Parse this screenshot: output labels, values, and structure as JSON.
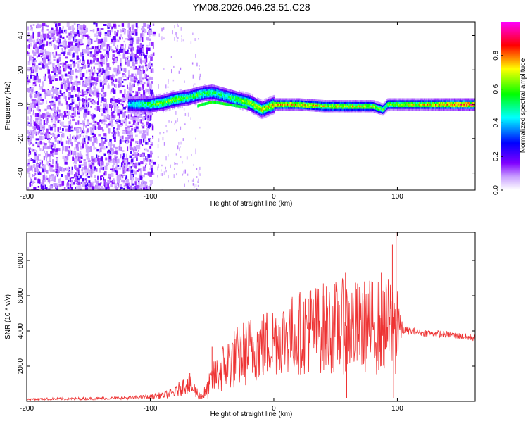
{
  "title": "YM08.2026.046.23.51.C28",
  "chart_data": [
    {
      "type": "heatmap",
      "title": "YM08.2026.046.23.51.C28",
      "xlabel": "Height of straight line (km)",
      "ylabel": "Frequency (Hz)",
      "xlim": [
        -200,
        163
      ],
      "ylim": [
        -50,
        48
      ],
      "xticks": [
        -200,
        -100,
        0,
        100
      ],
      "yticks": [
        -40,
        -20,
        0,
        20,
        40
      ],
      "colorbar": {
        "label": "Normalized spectral amplitude",
        "range": [
          0,
          1
        ],
        "ticks": [
          "0.0",
          "0.2",
          "0.4",
          "0.6",
          "0.8"
        ],
        "colors": [
          "#ffffff",
          "#8000ff",
          "#0000ff",
          "#00ffff",
          "#00ff00",
          "#ffff00",
          "#ff0000",
          "#ff00ff"
        ]
      },
      "noise_region_x": [
        -200,
        -100
      ],
      "ridge": {
        "x": [
          -118,
          -100,
          -90,
          -80,
          -70,
          -60,
          -50,
          -40,
          -30,
          -20,
          -10,
          0,
          20,
          40,
          60,
          80,
          88,
          92,
          100,
          120,
          140,
          163
        ],
        "freq": [
          0,
          0,
          1,
          3,
          4,
          6,
          7,
          5,
          3,
          1,
          -3,
          0,
          0,
          -1,
          -1,
          -1,
          -3,
          0,
          0,
          0,
          0,
          0
        ],
        "amplitude": [
          0.45,
          0.6,
          0.65,
          0.65,
          0.6,
          0.6,
          0.55,
          0.55,
          0.6,
          0.7,
          0.75,
          0.8,
          0.8,
          0.75,
          0.75,
          0.7,
          0.6,
          0.65,
          0.7,
          0.75,
          0.85,
          0.95
        ]
      }
    },
    {
      "type": "line",
      "xlabel": "Height of straight line (km)",
      "ylabel": "SNR (10 * v/v)",
      "xlim": [
        -200,
        163
      ],
      "ylim": [
        0,
        9600
      ],
      "xticks": [
        -200,
        -100,
        0,
        100
      ],
      "yticks": [
        2000,
        4000,
        6000,
        8000
      ],
      "color": "#ee3333",
      "series": [
        {
          "name": "SNR",
          "x": [
            -200,
            -180,
            -160,
            -140,
            -120,
            -100,
            -90,
            -80,
            -75,
            -70,
            -65,
            -60,
            -55,
            -50,
            -45,
            -40,
            -35,
            -30,
            -25,
            -20,
            -15,
            -10,
            -5,
            0,
            5,
            10,
            15,
            20,
            25,
            30,
            35,
            40,
            45,
            50,
            55,
            60,
            65,
            70,
            75,
            80,
            85,
            90,
            95,
            98,
            100,
            102,
            105,
            110,
            120,
            130,
            140,
            150,
            163
          ],
          "y": [
            120,
            140,
            150,
            170,
            200,
            260,
            350,
            500,
            800,
            1000,
            700,
            300,
            500,
            1200,
            1600,
            2000,
            2300,
            2500,
            2700,
            2900,
            3000,
            3100,
            3300,
            3500,
            3600,
            3700,
            3800,
            3900,
            4000,
            4100,
            4100,
            4200,
            4150,
            4200,
            4250,
            4300,
            4200,
            4250,
            4300,
            4200,
            4300,
            4350,
            4300,
            4100,
            5000,
            4100,
            4050,
            4000,
            3900,
            3850,
            3800,
            3700,
            3600
          ],
          "amplitude": [
            60,
            70,
            80,
            80,
            90,
            120,
            200,
            300,
            500,
            600,
            500,
            250,
            500,
            900,
            1200,
            1500,
            1700,
            1800,
            1900,
            2000,
            2000,
            2000,
            2100,
            2100,
            2100,
            2200,
            2300,
            2400,
            2500,
            2600,
            2600,
            2600,
            2600,
            2700,
            2700,
            2800,
            2700,
            2600,
            2700,
            2800,
            2800,
            2700,
            2800,
            2500,
            4600,
            900,
            250,
            220,
            200,
            200,
            200,
            200,
            200
          ]
        }
      ],
      "spikes": [
        {
          "x": -68,
          "y": 1600
        },
        {
          "x": -50,
          "y": 3100
        },
        {
          "x": 20,
          "y": 5200
        },
        {
          "x": 28,
          "y": 5800
        },
        {
          "x": 30,
          "y": 6300
        },
        {
          "x": 40,
          "y": 6000
        },
        {
          "x": 58,
          "y": 7300
        },
        {
          "x": 59,
          "y": 200
        },
        {
          "x": 80,
          "y": 6800
        },
        {
          "x": 87,
          "y": 7300
        },
        {
          "x": 96,
          "y": 8900
        },
        {
          "x": 97,
          "y": 200
        },
        {
          "x": 99,
          "y": 9600
        }
      ]
    }
  ]
}
